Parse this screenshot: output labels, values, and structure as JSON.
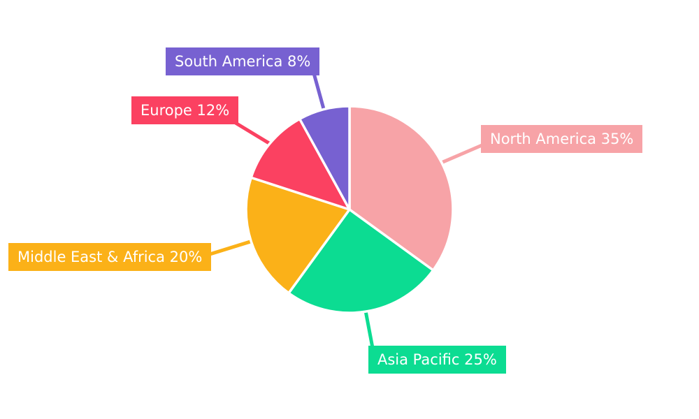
{
  "chart_data": {
    "type": "pie",
    "background": "#ffffff",
    "legend_position": "none",
    "labels_style": "callout-boxes-with-leader-lines",
    "start_angle_deg": 0,
    "direction": "clockwise",
    "slices": [
      {
        "label": "North America",
        "value": 35,
        "display": "North America 35%",
        "color": "#F7A3A7"
      },
      {
        "label": "Asia Pacific",
        "value": 25,
        "display": "Asia Pacific 25%",
        "color": "#0CDC92"
      },
      {
        "label": "Middle East & Africa",
        "value": 20,
        "display": "Middle East & Africa 20%",
        "color": "#FBB118"
      },
      {
        "label": "Europe",
        "value": 12,
        "display": "Europe 12%",
        "color": "#FB4161"
      },
      {
        "label": "South America",
        "value": 8,
        "display": "South America 8%",
        "color": "#7761D1"
      }
    ]
  }
}
